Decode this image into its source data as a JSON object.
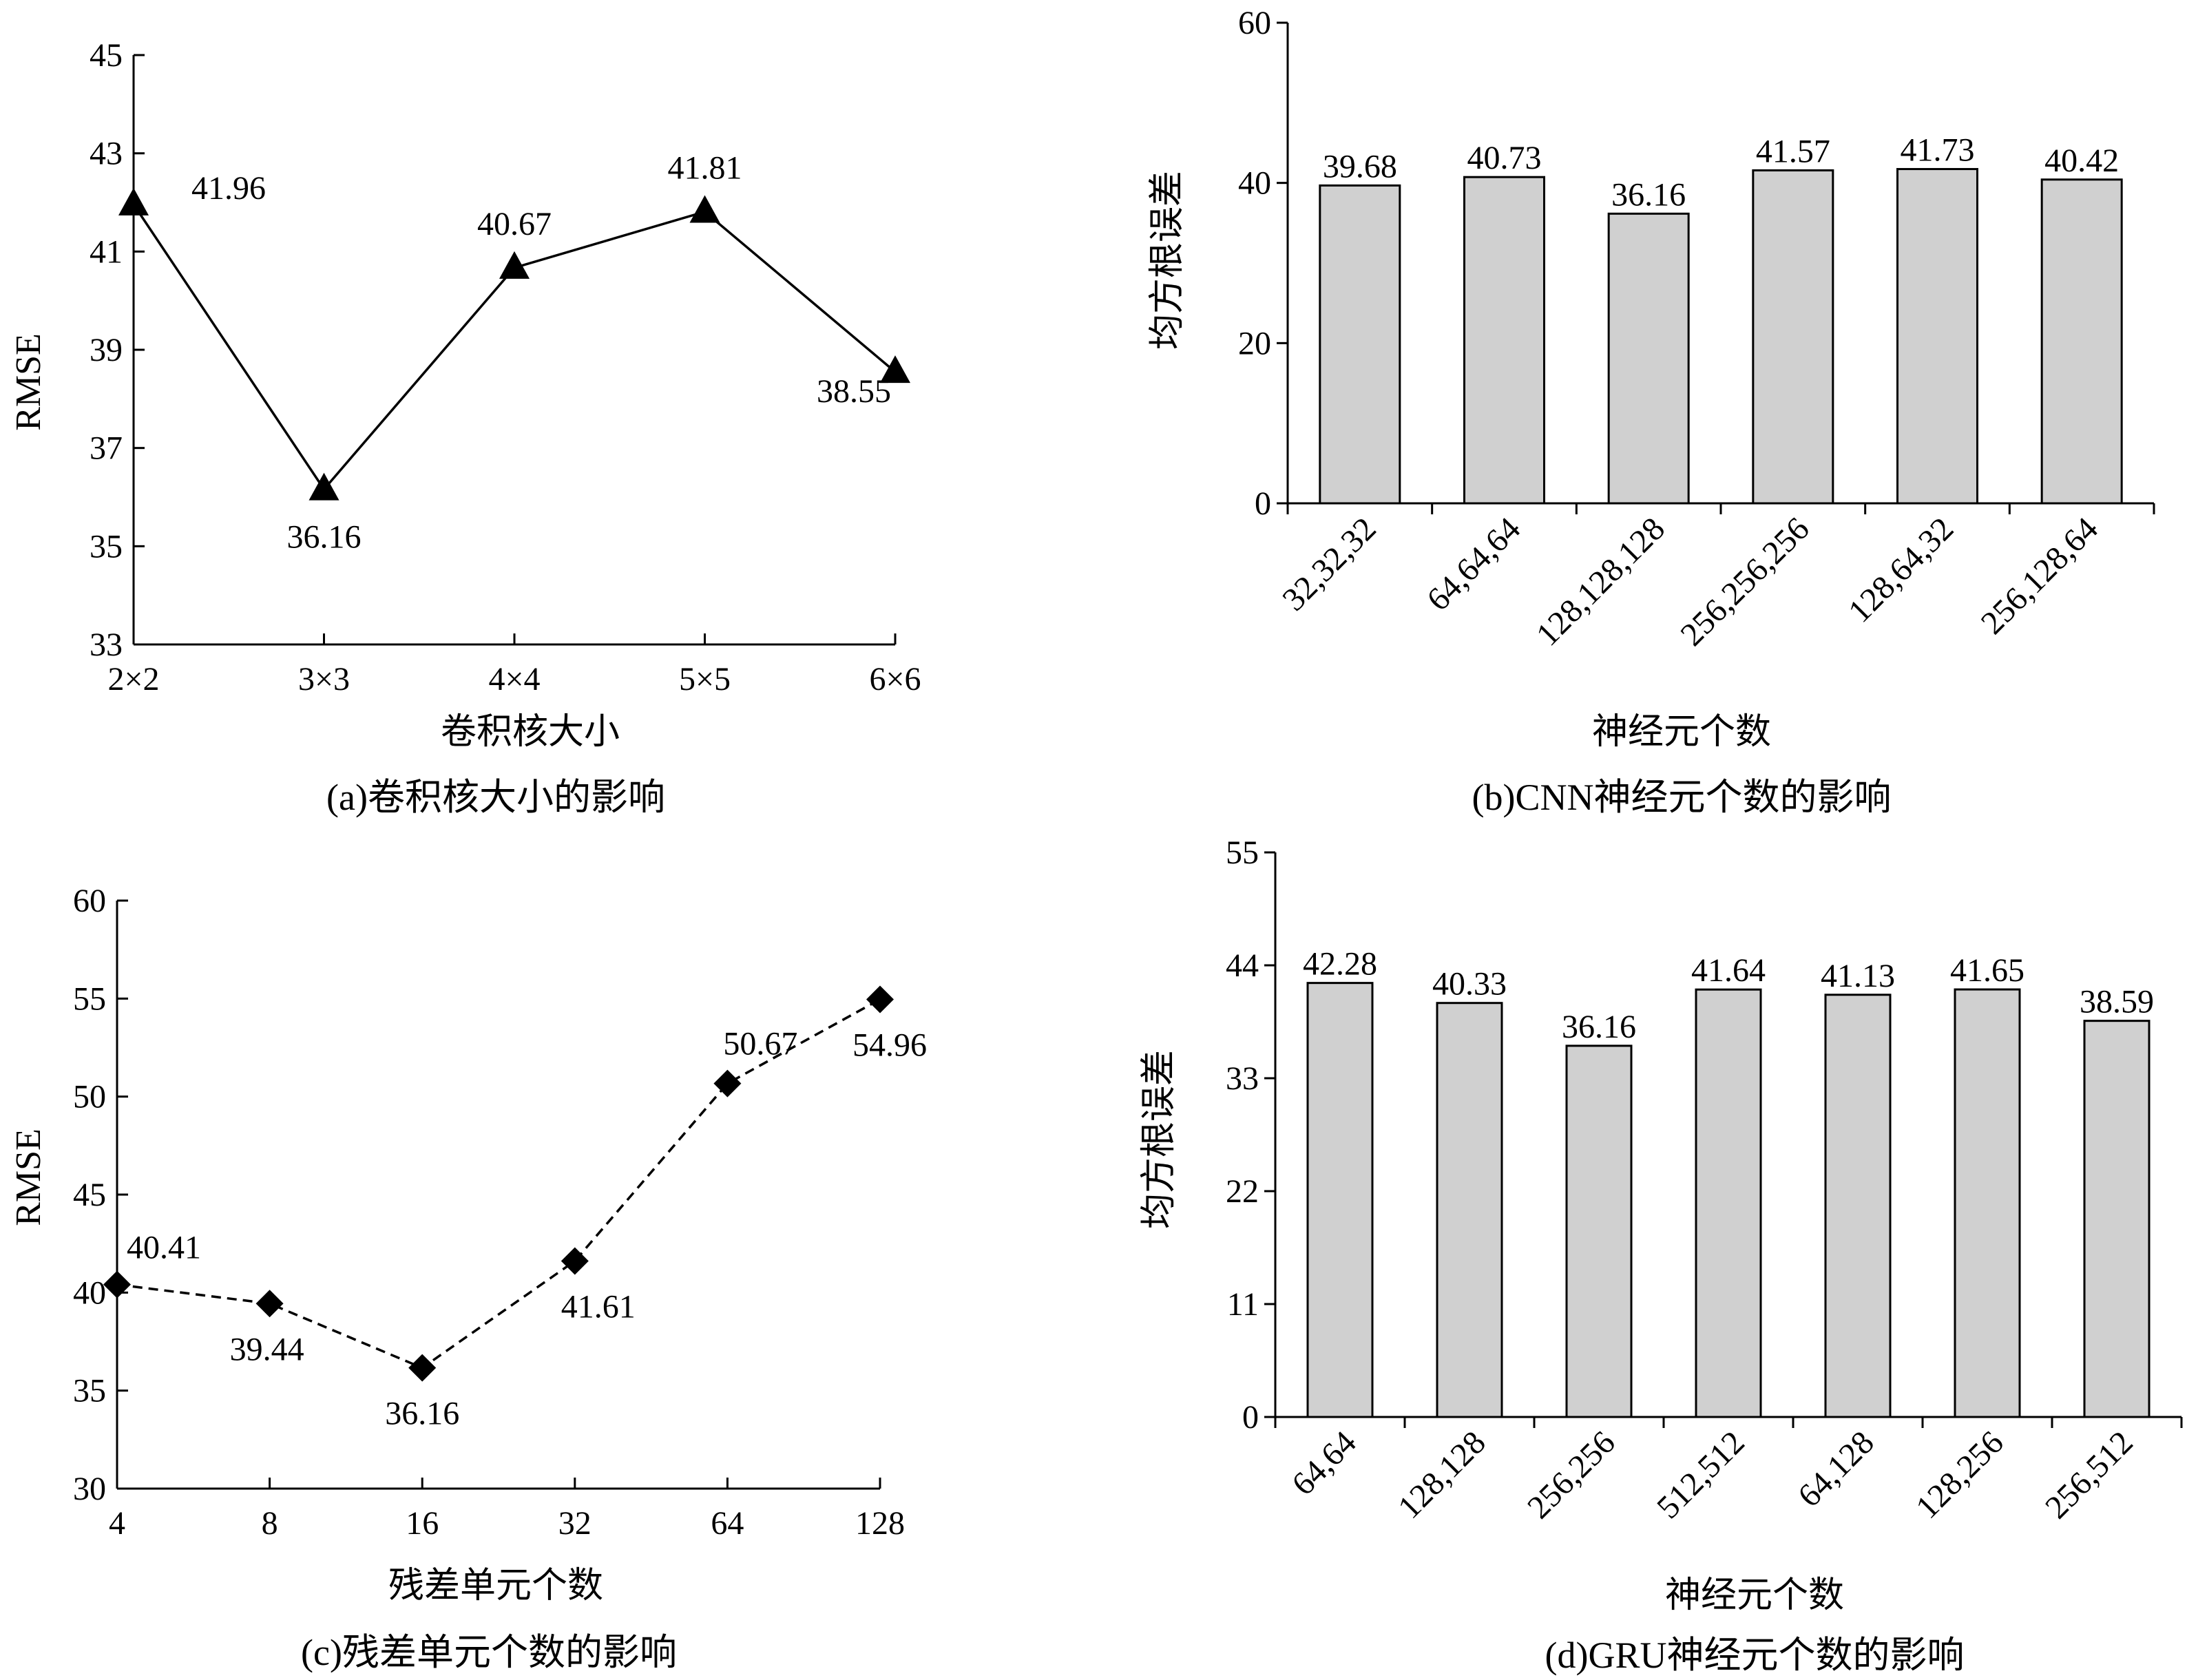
{
  "chart_data": [
    {
      "id": "a",
      "type": "line",
      "caption": "(a)卷积核大小的影响",
      "xlabel": "卷积核大小",
      "ylabel": "RMSE",
      "categories": [
        "2×2",
        "3×3",
        "4×4",
        "5×5",
        "6×6"
      ],
      "ylim": [
        33,
        45
      ],
      "yticks": [
        33,
        35,
        37,
        39,
        41,
        43,
        45
      ],
      "values": [
        41.96,
        36.16,
        40.67,
        41.81,
        38.55
      ],
      "value_labels": [
        "41.96",
        "36.16",
        "40.67",
        "41.81",
        "38.55"
      ],
      "marker": "triangle",
      "line_style": "solid",
      "color": "#000000"
    },
    {
      "id": "b",
      "type": "bar",
      "caption": "(b)CNN神经元个数的影响",
      "xlabel": "神经元个数",
      "ylabel": "均方根误差",
      "categories": [
        "32,32,32",
        "64,64,64",
        "128,128,128",
        "256,256,256",
        "128,64,32",
        "256,128,64"
      ],
      "ylim": [
        0,
        60
      ],
      "yticks": [
        0,
        20,
        40,
        60
      ],
      "values": [
        39.68,
        40.73,
        36.16,
        41.57,
        41.73,
        40.42
      ],
      "value_labels": [
        "39.68",
        "40.73",
        "36.16",
        "41.57",
        "41.73",
        "40.42"
      ],
      "bar_color": "#d0d0d0",
      "edge_color": "#000000"
    },
    {
      "id": "c",
      "type": "line",
      "caption": "(c)残差单元个数的影响",
      "xlabel": "残差单元个数",
      "ylabel": "RMSE",
      "categories": [
        "4",
        "8",
        "16",
        "32",
        "64",
        "128"
      ],
      "ylim": [
        30,
        60
      ],
      "yticks": [
        30,
        35,
        40,
        45,
        50,
        55,
        60
      ],
      "values": [
        40.41,
        39.44,
        36.16,
        41.61,
        50.67,
        54.96
      ],
      "value_labels": [
        "40.41",
        "39.44",
        "36.16",
        "41.61",
        "50.67",
        "54.96"
      ],
      "marker": "diamond",
      "line_style": "dashed",
      "color": "#000000"
    },
    {
      "id": "d",
      "type": "bar",
      "caption": "(d)GRU神经元个数的影响",
      "xlabel": "神经元个数",
      "ylabel": "均方根误差",
      "categories": [
        "64,64",
        "128,128",
        "256,256",
        "512,512",
        "64,128",
        "128,256",
        "256,512"
      ],
      "ylim": [
        0,
        55
      ],
      "yticks": [
        0,
        11,
        22,
        33,
        44,
        55
      ],
      "values": [
        42.28,
        40.33,
        36.16,
        41.64,
        41.13,
        41.65,
        38.59
      ],
      "value_labels": [
        "42.28",
        "40.33",
        "36.16",
        "41.64",
        "41.13",
        "41.65",
        "38.59"
      ],
      "bar_color": "#d0d0d0",
      "edge_color": "#000000"
    }
  ]
}
